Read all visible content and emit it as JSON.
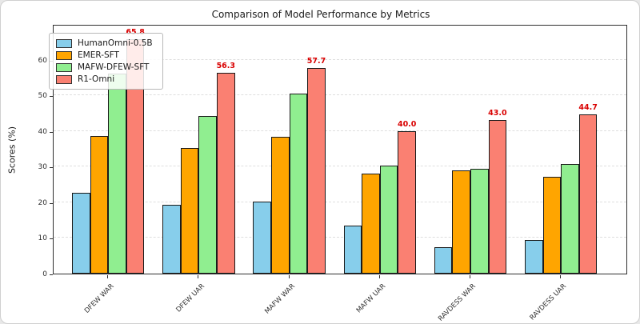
{
  "title": "Comparison of Model Performance by Metrics",
  "chart_data": {
    "type": "bar",
    "title": "Comparison of Model Performance by Metrics",
    "xlabel": "",
    "ylabel": "Scores (%)",
    "categories": [
      "DFEW WAR",
      "DFEW UAR",
      "MAFW WAR",
      "MAFW UAR",
      "RAVDESS WAR",
      "RAVDESS UAR"
    ],
    "series": [
      {
        "name": "HumanOmni-0.5B",
        "color": "#87CEEB",
        "values": [
          22.6,
          19.4,
          20.2,
          13.5,
          7.3,
          9.4
        ],
        "show_labels": false
      },
      {
        "name": "EMER-SFT",
        "color": "#FFA500",
        "values": [
          38.7,
          35.3,
          38.4,
          28.0,
          29.0,
          27.2
        ],
        "show_labels": false
      },
      {
        "name": "MAFW-DFEW-SFT",
        "color": "#90EE90",
        "values": [
          56.1,
          44.3,
          50.4,
          30.4,
          29.3,
          30.8
        ],
        "show_labels": false
      },
      {
        "name": "R1-Omni",
        "color": "#FA8072",
        "values": [
          65.8,
          56.3,
          57.7,
          40.0,
          43.0,
          44.7
        ],
        "show_labels": true,
        "labels": [
          "65.8",
          "56.3",
          "57.7",
          "40.0",
          "43.0",
          "44.7"
        ]
      }
    ],
    "annotation_color": "#d90000",
    "yticks": [
      0,
      10,
      20,
      30,
      40,
      50,
      60
    ],
    "ylim": [
      0,
      70
    ],
    "grid": true,
    "grid_style": "dashed",
    "legend_position": "upper left",
    "bar_edge_color": "#1a1a1a"
  }
}
